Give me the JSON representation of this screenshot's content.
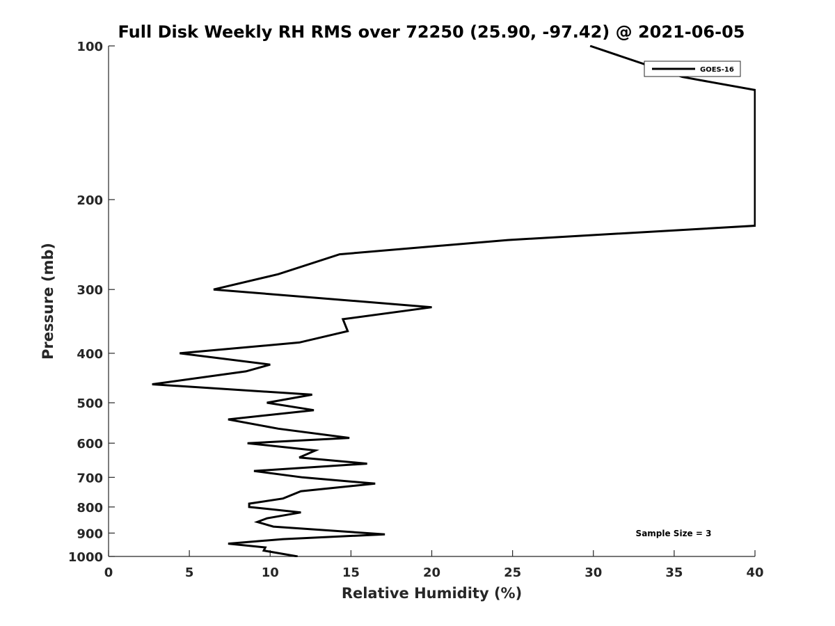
{
  "chart_data": {
    "type": "line",
    "title": "Full Disk Weekly RH RMS over 72250 (25.90, -97.42) @ 2021-06-05",
    "xlabel": "Relative Humidity (%)",
    "ylabel": "Pressure (mb)",
    "xlim": [
      0,
      40
    ],
    "ylim": [
      100,
      1000
    ],
    "y_scale": "log",
    "y_reversed": true,
    "grid": false,
    "legend_position": "top-right",
    "x_ticks": [
      0,
      5,
      10,
      15,
      20,
      25,
      30,
      35,
      40
    ],
    "y_ticks": [
      100,
      200,
      300,
      400,
      500,
      600,
      700,
      800,
      900,
      1000
    ],
    "annotation": "Sample Size = 3",
    "series": [
      {
        "name": "GOES-16",
        "color": "#000000",
        "points": [
          [
            29.8,
            100
          ],
          [
            35.5,
            115
          ],
          [
            40.0,
            122
          ],
          [
            40.0,
            225
          ],
          [
            24.7,
            240
          ],
          [
            14.3,
            256
          ],
          [
            10.5,
            280
          ],
          [
            6.5,
            300
          ],
          [
            20.0,
            325
          ],
          [
            14.5,
            343
          ],
          [
            14.8,
            362
          ],
          [
            11.8,
            381
          ],
          [
            4.4,
            400
          ],
          [
            10.0,
            421
          ],
          [
            8.5,
            434
          ],
          [
            2.7,
            460
          ],
          [
            12.6,
            482
          ],
          [
            9.8,
            500
          ],
          [
            12.7,
            517
          ],
          [
            7.4,
            539
          ],
          [
            10.5,
            562
          ],
          [
            14.9,
            586
          ],
          [
            8.6,
            600
          ],
          [
            12.8,
            620
          ],
          [
            11.8,
            640
          ],
          [
            16.0,
            658
          ],
          [
            9.0,
            680
          ],
          [
            12.0,
            700
          ],
          [
            16.5,
            720
          ],
          [
            11.9,
            745
          ],
          [
            10.8,
            770
          ],
          [
            8.7,
            788
          ],
          [
            8.7,
            800
          ],
          [
            11.9,
            820
          ],
          [
            9.8,
            842
          ],
          [
            9.2,
            856
          ],
          [
            10.2,
            874
          ],
          [
            17.1,
            905
          ],
          [
            10.8,
            925
          ],
          [
            7.4,
            944
          ],
          [
            9.7,
            960
          ],
          [
            9.6,
            974
          ],
          [
            11.7,
            1000
          ]
        ]
      }
    ]
  }
}
